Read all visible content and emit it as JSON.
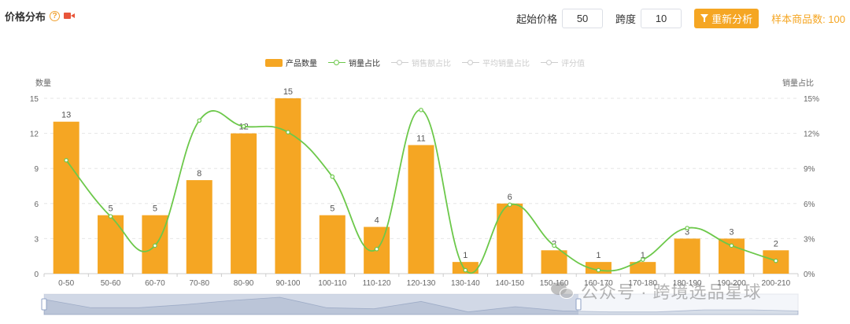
{
  "header": {
    "title": "价格分布",
    "help_icon": "question-circle-icon",
    "video_icon": "video-camera-icon"
  },
  "controls": {
    "start_price_label": "起始价格",
    "start_price_value": "50",
    "step_label": "跨度",
    "step_value": "10",
    "reanalyze_label": "重新分析",
    "reanalyze_icon": "filter-icon",
    "sample_count_text": "样本商品数: 100"
  },
  "colors": {
    "bar": "#f5a623",
    "line": "#6cc84a",
    "accent": "#f5a623",
    "inactive_legend": "#cccccc"
  },
  "chart_data": {
    "type": "bar",
    "categories": [
      "0-50",
      "50-60",
      "60-70",
      "70-80",
      "80-90",
      "90-100",
      "100-110",
      "110-120",
      "120-130",
      "130-140",
      "140-150",
      "150-160",
      "160-170",
      "170-180",
      "180-190",
      "190-200",
      "200-210"
    ],
    "series": [
      {
        "name": "产品数量",
        "type": "bar",
        "axis": "left",
        "values": [
          13,
          5,
          5,
          8,
          12,
          15,
          5,
          4,
          11,
          1,
          6,
          2,
          1,
          1,
          3,
          3,
          2
        ],
        "show_labels": true
      },
      {
        "name": "销量占比",
        "type": "line",
        "axis": "right",
        "smooth": true,
        "values": [
          9.7,
          4.9,
          2.4,
          13.1,
          12.6,
          12.1,
          8.3,
          2.1,
          14.0,
          0.3,
          5.9,
          2.4,
          0.3,
          1.2,
          3.9,
          2.4,
          1.1
        ]
      }
    ],
    "legend": [
      {
        "name": "产品数量",
        "kind": "bar",
        "active": true
      },
      {
        "name": "销量占比",
        "kind": "line",
        "active": true
      },
      {
        "name": "销售额占比",
        "kind": "line",
        "active": false
      },
      {
        "name": "平均销量占比",
        "kind": "line",
        "active": false
      },
      {
        "name": "评分值",
        "kind": "line",
        "active": false
      }
    ],
    "ylabel_left": "数量",
    "ylabel_right": "销量占比",
    "ylim_left": [
      0,
      15
    ],
    "yticks_left": [
      "0",
      "3",
      "6",
      "9",
      "12",
      "15"
    ],
    "ylim_right": [
      0,
      15
    ],
    "yticks_right": [
      "0%",
      "3%",
      "6%",
      "9%",
      "12%",
      "15%"
    ],
    "grid": true,
    "legend_position": "top-center",
    "zoom_slider": true
  },
  "watermark": {
    "text": "公众号 · 跨境选品星球",
    "icon": "wechat-icon"
  }
}
